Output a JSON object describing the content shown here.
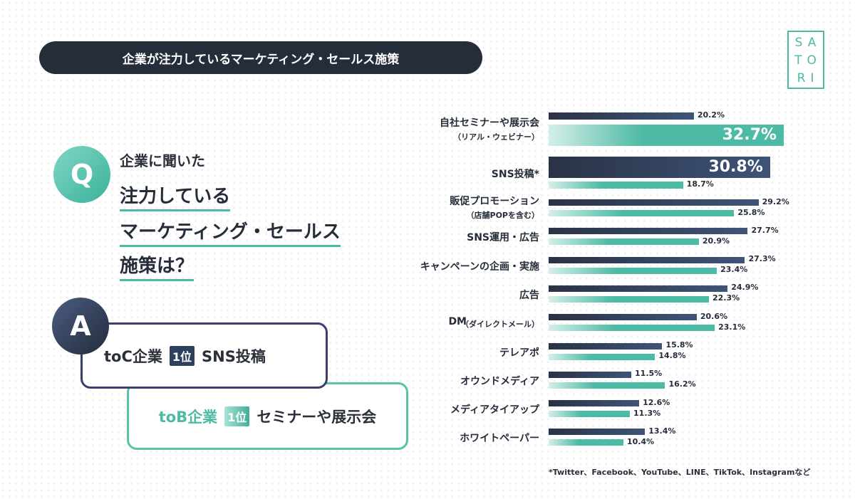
{
  "title": "企業が注力しているマーケティング・セールス施策",
  "logo": "SATORI",
  "question": {
    "badge": "Q",
    "lines": [
      "企業に聞いた",
      "注力している",
      "マーケティング・セールス",
      "施策は？"
    ]
  },
  "answer": {
    "badge": "A",
    "toC": {
      "label": "toC企業",
      "rank": "1位",
      "value": "SNS投稿"
    },
    "toB": {
      "label": "toB企業",
      "rank": "1位",
      "value": "セミナーや展示会"
    }
  },
  "footnote": "*Twitter、Facebook、YouTube、LINE、TikTok、Instagramなど",
  "chart_data": {
    "type": "bar",
    "orientation": "horizontal",
    "series": [
      {
        "name": "toC企業",
        "color": "#2f3f5e",
        "values": [
          20.2,
          30.8,
          29.2,
          27.7,
          27.3,
          24.9,
          20.6,
          15.8,
          11.5,
          12.6,
          13.4
        ]
      },
      {
        "name": "toB企業",
        "color": "#4dbaa5",
        "values": [
          32.7,
          18.7,
          25.8,
          20.9,
          23.4,
          22.3,
          23.1,
          14.8,
          16.2,
          11.3,
          10.4
        ]
      }
    ],
    "categories": [
      "自社セミナーや展示会",
      "SNS投稿*",
      "販促プロモーション",
      "SNS運用・広告",
      "キャンペーンの企画・実施",
      "広告",
      "DM",
      "テレアポ",
      "オウンドメディア",
      "メディアタイアップ",
      "ホワイトペーパー"
    ],
    "category_notes": [
      "（リアル・ウェビナー）",
      "",
      "（店舗POPを含む）",
      "",
      "",
      "",
      "（ダイレクトメール）",
      "",
      "",
      "",
      ""
    ],
    "unit": "%"
  }
}
